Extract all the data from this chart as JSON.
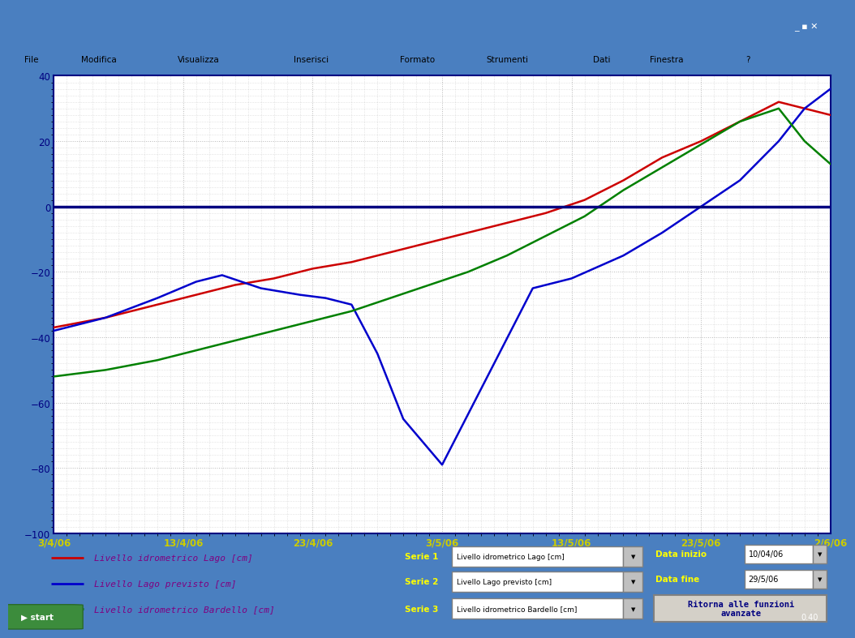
{
  "background_color": "#4a7fc0",
  "plot_bg_color": "#ffffff",
  "border_color": "#000080",
  "grid_color": "#b0b0b0",
  "zero_line_color": "#000080",
  "ylim": [
    -100,
    40
  ],
  "x_labels": [
    "3/4/06",
    "13/4/06",
    "23/4/06",
    "3/5/06",
    "13/5/06",
    "23/5/06",
    "2/6/06"
  ],
  "series1_label": "Livello idrometrico Lago [cm]",
  "series2_label": "Livello Lago previsto [cm]",
  "series3_label": "Livello idrometrico Bardello [cm]",
  "series1_color": "#cc0000",
  "series2_color": "#0000cc",
  "series3_color": "#008000",
  "red_x": [
    0,
    4,
    8,
    11,
    14,
    17,
    20,
    23,
    26,
    29,
    32,
    35,
    38,
    41,
    44,
    47,
    50,
    53,
    56,
    58,
    60
  ],
  "red_y": [
    -37,
    -34,
    -30,
    -27,
    -24,
    -22,
    -19,
    -17,
    -14,
    -11,
    -8,
    -5,
    -2,
    2,
    8,
    15,
    20,
    26,
    32,
    30,
    28
  ],
  "blue_x": [
    0,
    4,
    8,
    11,
    13,
    16,
    19,
    21,
    23,
    25,
    27,
    30,
    37,
    40,
    44,
    47,
    50,
    53,
    56,
    58,
    60
  ],
  "blue_y": [
    -38,
    -34,
    -28,
    -23,
    -21,
    -25,
    -27,
    -28,
    -30,
    -45,
    -65,
    -79,
    -25,
    -22,
    -15,
    -8,
    0,
    8,
    20,
    30,
    36
  ],
  "green_x": [
    0,
    4,
    8,
    11,
    14,
    17,
    20,
    23,
    26,
    29,
    32,
    35,
    38,
    41,
    44,
    47,
    50,
    53,
    56,
    58,
    60
  ],
  "green_y": [
    -52,
    -50,
    -47,
    -44,
    -41,
    -38,
    -35,
    -32,
    -28,
    -24,
    -20,
    -15,
    -9,
    -3,
    5,
    12,
    19,
    26,
    30,
    20,
    13
  ],
  "legend_bg": "#d4d0c8",
  "legend_border": "#000080",
  "legend_label_color": "#800080",
  "x_tick_color": "#cccc00",
  "y_tick_color": "#000080",
  "winxp_titlebar_color": "#4a7fc0",
  "winxp_menu_color": "#d4d0c8",
  "taskbar_color": "#245edb"
}
